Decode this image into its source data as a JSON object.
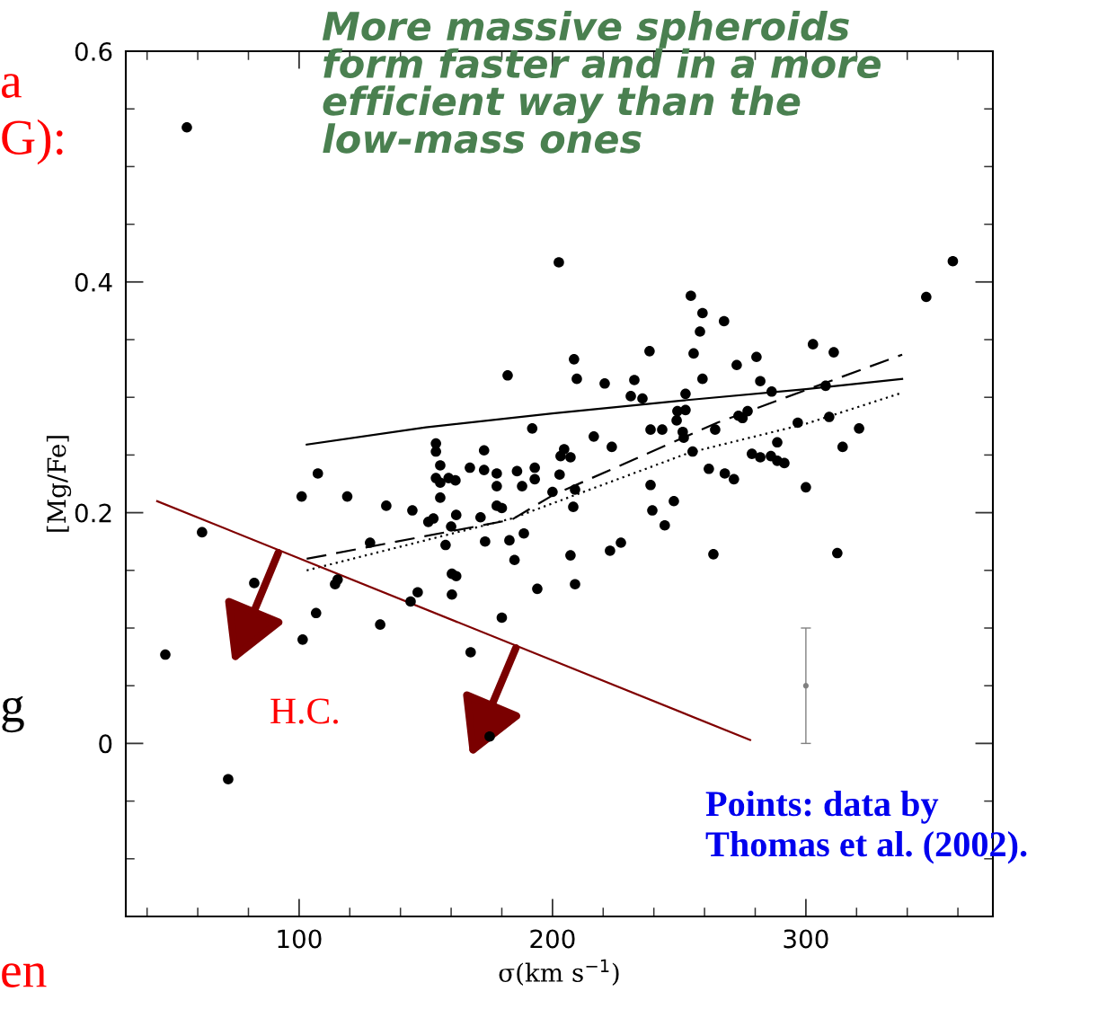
{
  "chart_data": {
    "type": "scatter",
    "xlabel": "σ(km s$^{−1}$)",
    "ylabel": "[Mg/Fe]",
    "xlim": [
      31.6,
      373.8
    ],
    "ylim": [
      -0.15,
      0.6
    ],
    "xticks": [
      {
        "value": 40,
        "label": null
      },
      {
        "value": 60,
        "label": null
      },
      {
        "value": 80,
        "label": null
      },
      100,
      {
        "value": 120,
        "label": null
      },
      {
        "value": 140,
        "label": null
      },
      {
        "value": 160,
        "label": null
      },
      {
        "value": 180,
        "label": null
      },
      200,
      {
        "value": 220,
        "label": null
      },
      {
        "value": 240,
        "label": null
      },
      {
        "value": 260,
        "label": null
      },
      {
        "value": 280,
        "label": null
      },
      300,
      {
        "value": 320,
        "label": null
      },
      {
        "value": 340,
        "label": null
      },
      {
        "value": 360,
        "label": null
      }
    ],
    "yticks": [
      {
        "value": -0.1,
        "label": null
      },
      {
        "value": -0.05,
        "label": null
      },
      0,
      {
        "value": 0.05,
        "label": null
      },
      {
        "value": 0.1,
        "label": null
      },
      {
        "value": 0.15,
        "label": null
      },
      0.2,
      {
        "value": 0.25,
        "label": null
      },
      {
        "value": 0.3,
        "label": null
      },
      {
        "value": 0.35,
        "label": null
      },
      0.4,
      {
        "value": 0.45,
        "label": null
      },
      {
        "value": 0.5,
        "label": null
      },
      {
        "value": 0.55,
        "label": null
      },
      0.6
    ],
    "grid": false,
    "legend": false,
    "series": [
      {
        "color": "#000000",
        "marker": "circle",
        "x": [
          55.7,
          182.3,
          202.5,
          192,
          107.4,
          101,
          119,
          154,
          154,
          173,
          155.7,
          167.4,
          173,
          178,
          154,
          159,
          161.7,
          155.7,
          186,
          193,
          193,
          178,
          188,
          200,
          155.7,
          134.4,
          144.7,
          178,
          180,
          151,
          153,
          162,
          171.6,
          160,
          188.7,
          173.4,
          183,
          157.8,
          185,
          128,
          61.7,
          160.3,
          162,
          194,
          146.8,
          160.3,
          82.3,
          114.2,
          115.2,
          144,
          106.7,
          180,
          132,
          101.4,
          47.2,
          167.7,
          175.2,
          72,
          358,
          347.5,
          254.6,
          259.2,
          267.7,
          258.2,
          238.3,
          255.7,
          208.5,
          302.8,
          311,
          280.5,
          272.7,
          209.6,
          259.2,
          220.6,
          232.3,
          230.9,
          235.5,
          252.5,
          282,
          286.5,
          307.8,
          249.3,
          252.5,
          249,
          251.4,
          251.8,
          273.4,
          277,
          275,
          238.7,
          243.3,
          296.8,
          309.2,
          321,
          314.5,
          264.2,
          255.3,
          216.3,
          223.4,
          204.6,
          203.2,
          207.1,
          288.7,
          278.7,
          282,
          286.2,
          288.7,
          291.5,
          261.7,
          268,
          271.6,
          202.8,
          300,
          208.9,
          238.7,
          208.2,
          247.9,
          239.4,
          244.3,
          207.1,
          222.7,
          227,
          263.5,
          312.4,
          208.9
        ],
        "values": [
          0.534,
          0.319,
          0.417,
          0.273,
          0.234,
          0.214,
          0.214,
          0.26,
          0.253,
          0.254,
          0.241,
          0.239,
          0.237,
          0.234,
          0.23,
          0.23,
          0.228,
          0.226,
          0.236,
          0.239,
          0.229,
          0.223,
          0.223,
          0.218,
          0.213,
          0.206,
          0.202,
          0.206,
          0.204,
          0.192,
          0.195,
          0.198,
          0.196,
          0.188,
          0.182,
          0.175,
          0.176,
          0.172,
          0.159,
          0.174,
          0.183,
          0.147,
          0.145,
          0.134,
          0.131,
          0.129,
          0.139,
          0.138,
          0.142,
          0.123,
          0.113,
          0.109,
          0.103,
          0.09,
          0.077,
          0.079,
          0.006,
          -0.031,
          0.418,
          0.387,
          0.388,
          0.373,
          0.366,
          0.357,
          0.34,
          0.338,
          0.333,
          0.346,
          0.339,
          0.335,
          0.328,
          0.316,
          0.316,
          0.312,
          0.315,
          0.301,
          0.299,
          0.303,
          0.314,
          0.305,
          0.31,
          0.288,
          0.289,
          0.28,
          0.27,
          0.265,
          0.284,
          0.288,
          0.282,
          0.272,
          0.272,
          0.278,
          0.283,
          0.273,
          0.257,
          0.272,
          0.253,
          0.266,
          0.257,
          0.255,
          0.249,
          0.248,
          0.261,
          0.251,
          0.248,
          0.249,
          0.245,
          0.243,
          0.238,
          0.234,
          0.229,
          0.233,
          0.222,
          0.22,
          0.224,
          0.205,
          0.21,
          0.202,
          0.189,
          0.163,
          0.167,
          0.174,
          0.164,
          0.165,
          0.138
        ]
      },
      {
        "type": "line",
        "color": "#000000",
        "line_style": "solid",
        "x": [
          103,
          150,
          200,
          250,
          300,
          338
        ],
        "values": [
          0.259,
          0.274,
          0.286,
          0.297,
          0.307,
          0.316
        ]
      },
      {
        "type": "line",
        "color": "#000000",
        "line_style": "dashed",
        "x": [
          103,
          184,
          200,
          265,
          338
        ],
        "values": [
          0.16,
          0.194,
          0.215,
          0.278,
          0.337
        ]
      },
      {
        "type": "line",
        "color": "#000000",
        "line_style": "dotted",
        "x": [
          103,
          184,
          254,
          300,
          338
        ],
        "values": [
          0.15,
          0.195,
          0.252,
          0.277,
          0.304
        ]
      },
      {
        "type": "line",
        "color": "#800000",
        "line_style": "solid",
        "x": [
          44,
          278
        ],
        "values": [
          0.21,
          0.003
        ]
      },
      {
        "type": "scatter",
        "color": "#808080",
        "marker": "circle",
        "x": [
          300
        ],
        "values": [
          0.05
        ],
        "errors": [
          0.05
        ]
      }
    ],
    "annotations": [
      "More massive spheroids\nform faster and in a more\nefficient way than the\nlow-mass ones",
      "H.C.",
      "Points: data by\nThomas et al. (2002).",
      "a",
      "G):",
      "g",
      "en"
    ]
  }
}
